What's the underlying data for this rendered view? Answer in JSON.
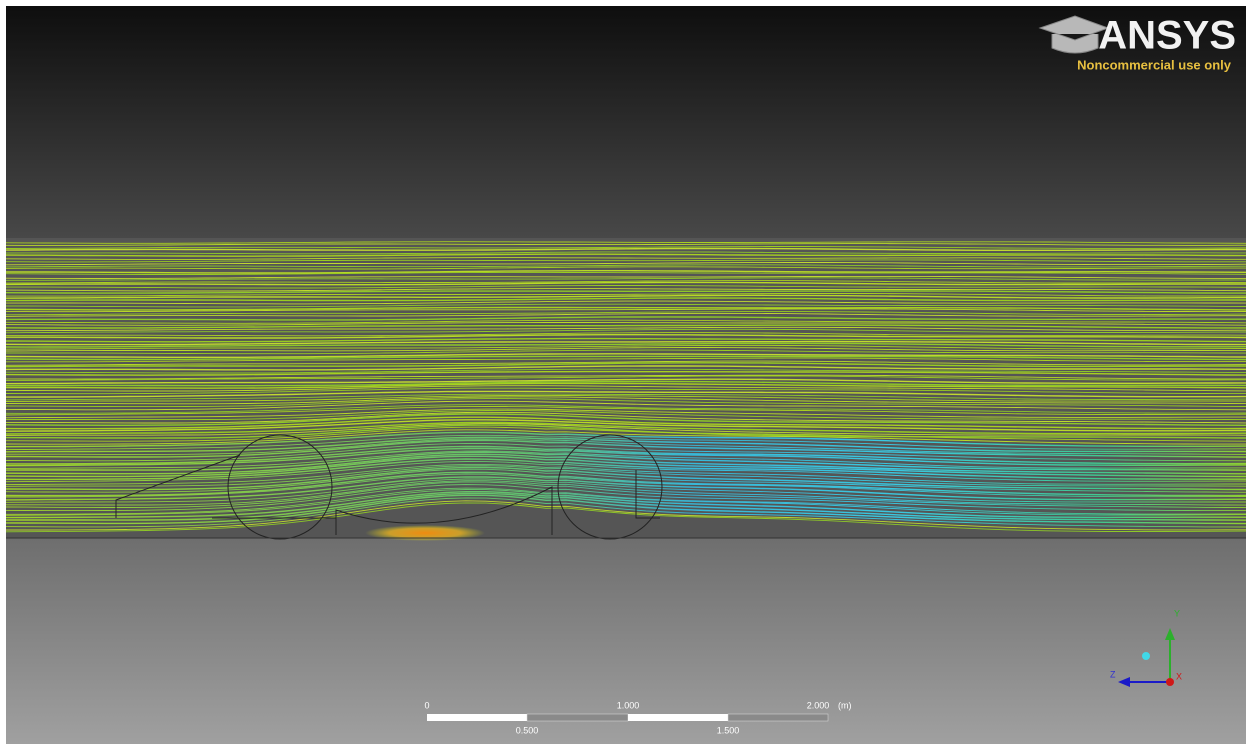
{
  "logo": {
    "brand": "ANSYS",
    "note": "Noncommercial use only"
  },
  "scale_bar": {
    "labels_top": [
      "0",
      "1.000",
      "2.000"
    ],
    "unit": "(m)",
    "labels_bottom": [
      "0.500",
      "1.500"
    ]
  },
  "triad": {
    "y": "Y",
    "z": "Z",
    "x": "X"
  }
}
